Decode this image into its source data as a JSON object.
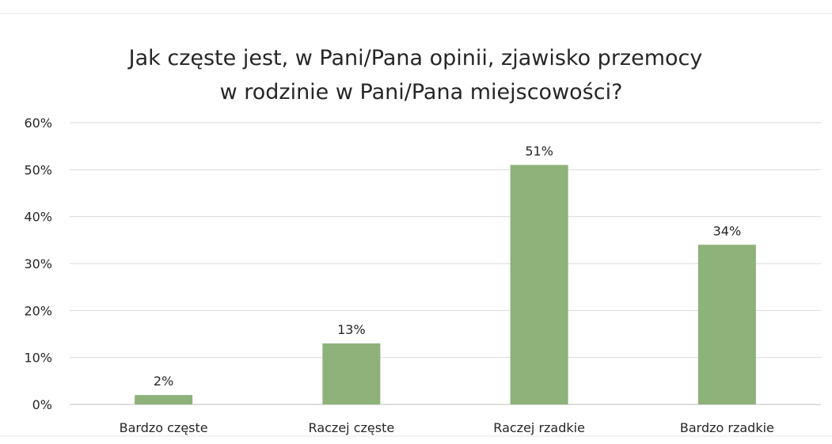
{
  "chart_data": {
    "type": "bar",
    "title_lines": [
      "Jak częste jest, w Pani/Pana opinii, zjawisko przemocy",
      "w rodzinie w Pani/Pana miejscowości?"
    ],
    "categories": [
      "Bardzo częste",
      "Raczej częste",
      "Raczej rzadkie",
      "Bardzo rzadkie"
    ],
    "values": [
      2,
      13,
      51,
      34
    ],
    "data_labels": [
      "2%",
      "13%",
      "51%",
      "34%"
    ],
    "ylim": [
      0,
      60
    ],
    "yticks": [
      0,
      10,
      20,
      30,
      40,
      50,
      60
    ],
    "ytick_labels": [
      "0%",
      "10%",
      "20%",
      "30%",
      "40%",
      "50%",
      "60%"
    ],
    "xlabel": "",
    "ylabel": "",
    "grid": true,
    "legend": "none",
    "bar_color": "#8db27a"
  }
}
